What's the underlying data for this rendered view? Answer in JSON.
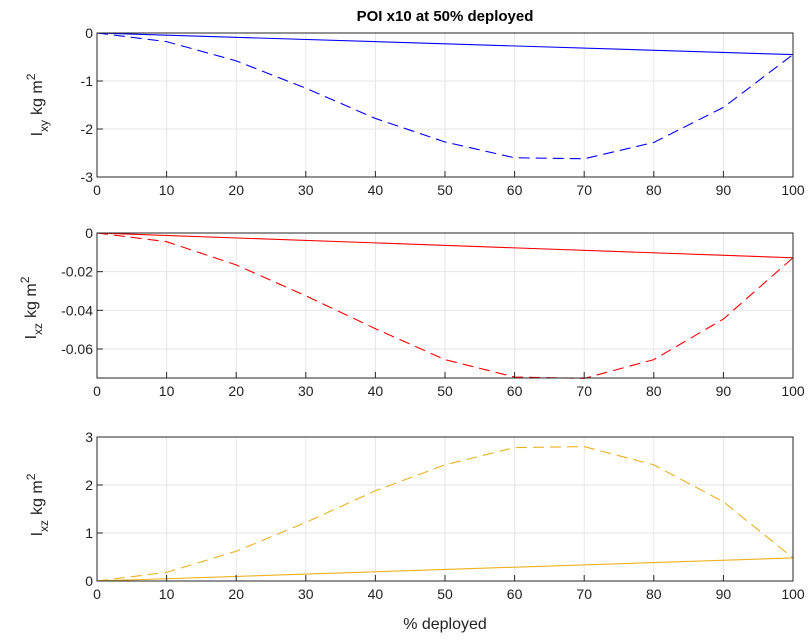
{
  "chart_data": [
    {
      "type": "line",
      "title": "POI x10 at 50% deployed",
      "xlabel": "",
      "ylabel": {
        "base": "I",
        "sub": "xy",
        "units": "kg m",
        "sup": "2"
      },
      "xlim": [
        0,
        100
      ],
      "ylim": [
        -3,
        0
      ],
      "xticks": [
        0,
        10,
        20,
        30,
        40,
        50,
        60,
        70,
        80,
        90,
        100
      ],
      "xtick_labels": [
        "0",
        "10",
        "20",
        "30",
        "40",
        "50",
        "60",
        "70",
        "80",
        "90",
        "100"
      ],
      "yticks": [
        -3,
        -2,
        -1,
        0
      ],
      "ytick_labels": [
        "-3",
        "-2",
        "-1",
        "0"
      ],
      "grid": true,
      "series": [
        {
          "style": "solid",
          "color": "#0000ff",
          "x": [
            0,
            100
          ],
          "y": [
            0,
            -0.45
          ]
        },
        {
          "style": "dashed",
          "color": "#0000ff",
          "x": [
            0,
            10,
            20,
            30,
            40,
            50,
            60,
            70,
            80,
            90,
            100
          ],
          "y": [
            0,
            -0.18,
            -0.58,
            -1.15,
            -1.78,
            -2.27,
            -2.6,
            -2.62,
            -2.28,
            -1.55,
            -0.45
          ]
        }
      ]
    },
    {
      "type": "line",
      "title": "",
      "xlabel": "",
      "ylabel": {
        "base": "I",
        "sub": "xz",
        "units": "kg m",
        "sup": "2"
      },
      "xlim": [
        0,
        100
      ],
      "ylim": [
        -0.075,
        0
      ],
      "xticks": [
        0,
        10,
        20,
        30,
        40,
        50,
        60,
        70,
        80,
        90,
        100
      ],
      "xtick_labels": [
        "0",
        "10",
        "20",
        "30",
        "40",
        "50",
        "60",
        "70",
        "80",
        "90",
        "100"
      ],
      "yticks": [
        -0.06,
        -0.04,
        -0.02,
        0
      ],
      "ytick_labels": [
        "-0.06",
        "-0.04",
        "-0.02",
        "0"
      ],
      "grid": true,
      "series": [
        {
          "style": "solid",
          "color": "#ff0000",
          "x": [
            0,
            100
          ],
          "y": [
            0,
            -0.0128
          ]
        },
        {
          "style": "dashed",
          "color": "#ff0000",
          "x": [
            0,
            10,
            20,
            30,
            40,
            50,
            60,
            70,
            80,
            90,
            100
          ],
          "y": [
            0,
            -0.0045,
            -0.0165,
            -0.0325,
            -0.0495,
            -0.0655,
            -0.0745,
            -0.0752,
            -0.0655,
            -0.0445,
            -0.0128
          ]
        }
      ]
    },
    {
      "type": "line",
      "title": "",
      "xlabel": "% deployed",
      "ylabel": {
        "base": "I",
        "sub": "xz",
        "units": "kg m",
        "sup": "2"
      },
      "xlim": [
        0,
        100
      ],
      "ylim": [
        0,
        3
      ],
      "xticks": [
        0,
        10,
        20,
        30,
        40,
        50,
        60,
        70,
        80,
        90,
        100
      ],
      "xtick_labels": [
        "0",
        "10",
        "20",
        "30",
        "40",
        "50",
        "60",
        "70",
        "80",
        "90",
        "100"
      ],
      "yticks": [
        0,
        1,
        2,
        3
      ],
      "ytick_labels": [
        "0",
        "1",
        "2",
        "3"
      ],
      "grid": true,
      "series": [
        {
          "style": "solid",
          "color": "#edb120",
          "x": [
            0,
            100
          ],
          "y": [
            0,
            0.48
          ]
        },
        {
          "style": "dashed",
          "color": "#edb120",
          "x": [
            0,
            10,
            20,
            30,
            40,
            50,
            60,
            70,
            80,
            90,
            100
          ],
          "y": [
            0,
            0.18,
            0.62,
            1.22,
            1.88,
            2.42,
            2.78,
            2.8,
            2.42,
            1.65,
            0.48
          ]
        }
      ]
    }
  ]
}
